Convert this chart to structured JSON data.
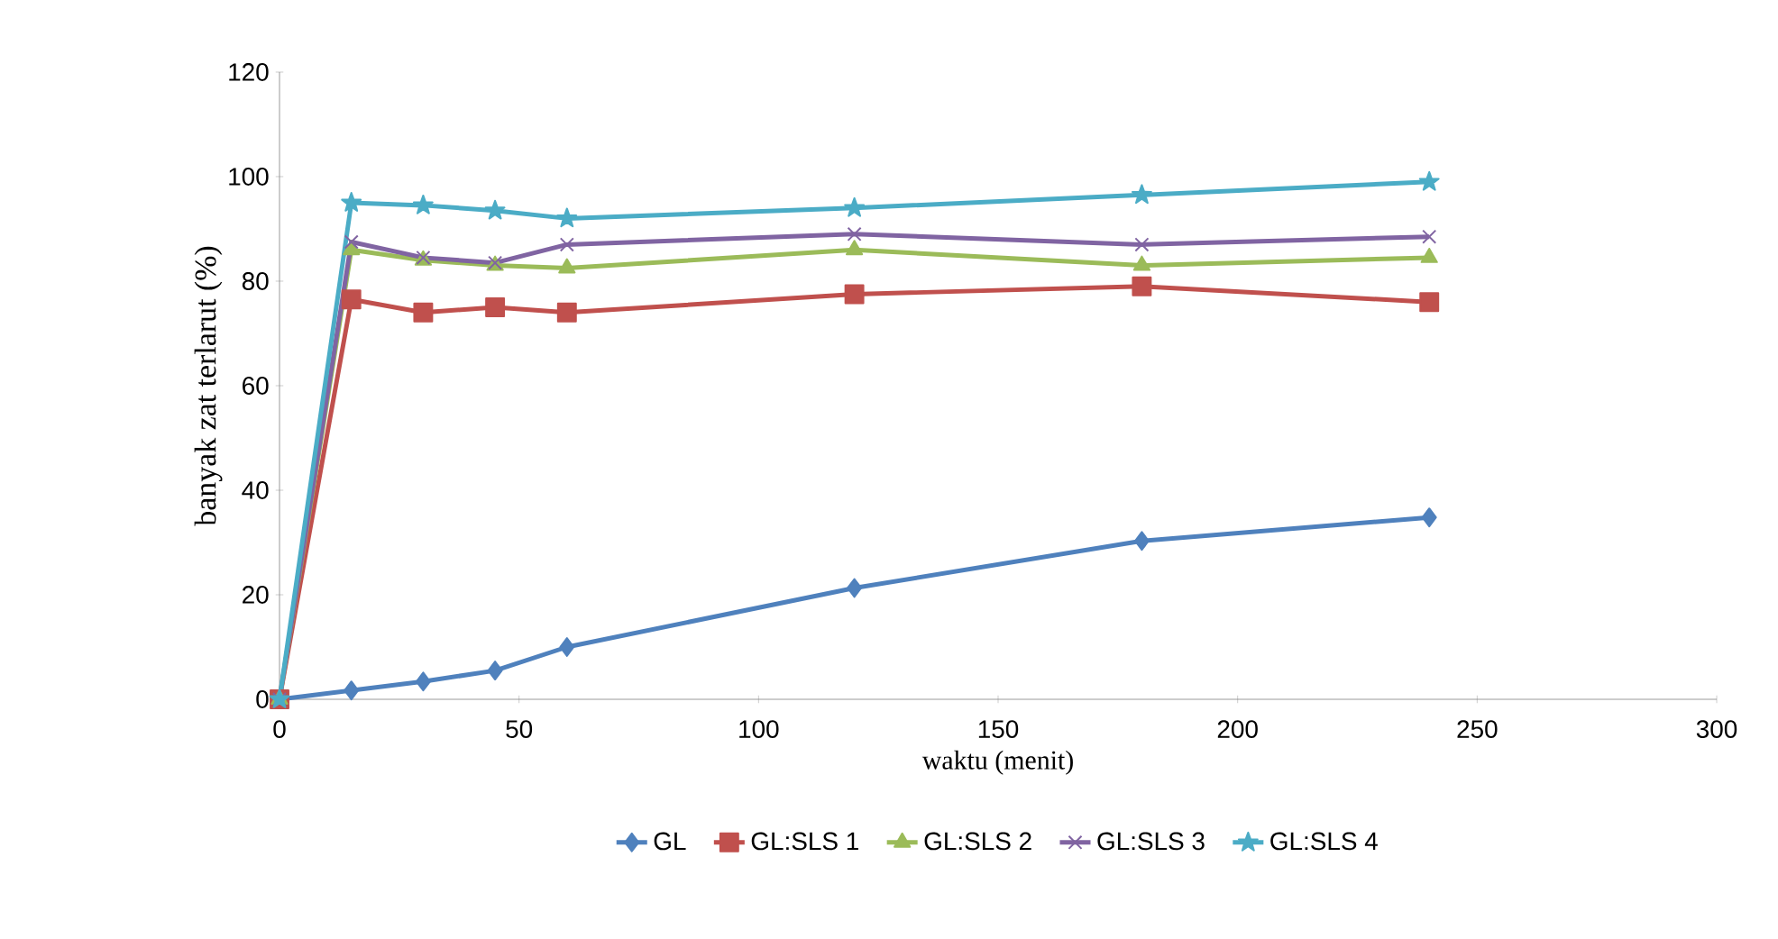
{
  "chart_data": {
    "type": "line",
    "xlabel": "waktu (menit)",
    "ylabel": "banyak zat terlarut (%)",
    "x": [
      0,
      15,
      30,
      45,
      60,
      120,
      180,
      240
    ],
    "xlim": [
      0,
      300
    ],
    "xticks": [
      0,
      50,
      100,
      150,
      200,
      250,
      300
    ],
    "ylim": [
      0,
      120
    ],
    "yticks": [
      0,
      20,
      40,
      60,
      80,
      100,
      120
    ],
    "grid": false,
    "legend": "bottom",
    "series": [
      {
        "name": "GL",
        "color": "#4f81bd",
        "marker": "diamond",
        "values": [
          0,
          1.7,
          3.4,
          5.5,
          10,
          21.3,
          30.3,
          34.8
        ]
      },
      {
        "name": "GL:SLS 1",
        "color": "#c0504d",
        "marker": "square",
        "values": [
          0,
          76.5,
          74,
          75,
          74,
          77.5,
          79,
          76
        ]
      },
      {
        "name": "GL:SLS 2",
        "color": "#9bbb59",
        "marker": "triangle",
        "values": [
          0,
          86,
          84,
          83,
          82.5,
          86,
          83,
          84.5
        ]
      },
      {
        "name": "GL:SLS 3",
        "color": "#8064a2",
        "marker": "cross",
        "values": [
          0,
          87.5,
          84.5,
          83.5,
          87,
          89,
          87,
          88.5
        ]
      },
      {
        "name": "GL:SLS 4",
        "color": "#4bacc6",
        "marker": "star",
        "values": [
          0,
          95,
          94.5,
          93.5,
          92,
          94,
          96.5,
          99
        ]
      }
    ]
  }
}
